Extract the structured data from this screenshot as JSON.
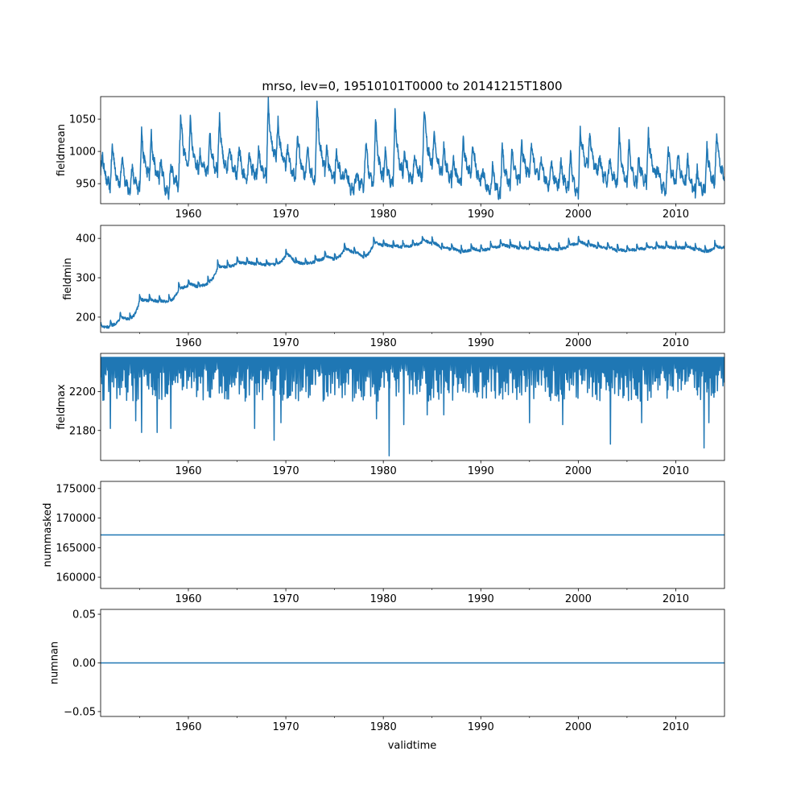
{
  "chart_data": [
    {
      "type": "line",
      "title": "mrso, lev=0, 19510101T0000 to 20141215T1800",
      "ylabel": "fieldmean",
      "xlabel": "",
      "xlim": [
        1951,
        2015
      ],
      "ylim": [
        919,
        1085
      ],
      "xticks": [
        "1960",
        "1970",
        "1980",
        "1990",
        "2000",
        "2010"
      ],
      "yticks": [
        {
          "v": 950,
          "label": "950"
        },
        {
          "v": 1000,
          "label": "1000"
        },
        {
          "v": 1050,
          "label": "1050"
        }
      ],
      "color": "#1f77b4",
      "years": [
        1951,
        1952,
        1953,
        1954,
        1955,
        1956,
        1957,
        1958,
        1959,
        1960,
        1961,
        1962,
        1963,
        1964,
        1965,
        1966,
        1967,
        1968,
        1969,
        1970,
        1971,
        1972,
        1973,
        1974,
        1975,
        1976,
        1977,
        1978,
        1979,
        1980,
        1981,
        1982,
        1983,
        1984,
        1985,
        1986,
        1987,
        1988,
        1989,
        1990,
        1991,
        1992,
        1993,
        1994,
        1995,
        1996,
        1997,
        1998,
        1999,
        2000,
        2001,
        2002,
        2003,
        2004,
        2005,
        2006,
        2007,
        2008,
        2009,
        2010,
        2011,
        2012,
        2013,
        2014
      ],
      "annual_peak": [
        995,
        1015,
        995,
        975,
        1030,
        1025,
        990,
        985,
        1057,
        1050,
        995,
        1030,
        1053,
        1010,
        1010,
        998,
        1005,
        1075,
        1047,
        1008,
        1030,
        1010,
        1078,
        1005,
        1000,
        970,
        965,
        1018,
        1050,
        1000,
        1060,
        1005,
        995,
        1072,
        1030,
        1005,
        985,
        1020,
        1015,
        975,
        980,
        1010,
        1005,
        1015,
        1015,
        990,
        985,
        985,
        1000,
        1035,
        1030,
        995,
        990,
        1030,
        1015,
        990,
        1030,
        975,
        1010,
        995,
        990,
        970,
        1010,
        1035
      ],
      "annual_trough": [
        942,
        945,
        935,
        940,
        960,
        955,
        930,
        945,
        975,
        970,
        965,
        965,
        965,
        960,
        950,
        960,
        960,
        985,
        975,
        955,
        960,
        950,
        970,
        955,
        955,
        935,
        945,
        945,
        955,
        945,
        960,
        950,
        960,
        975,
        965,
        955,
        950,
        960,
        950,
        935,
        930,
        945,
        950,
        960,
        955,
        945,
        945,
        940,
        928,
        975,
        965,
        950,
        950,
        945,
        945,
        950,
        960,
        935,
        950,
        950,
        935,
        935,
        945,
        955
      ]
    },
    {
      "type": "line",
      "ylabel": "fieldmin",
      "xlim": [
        1951,
        2015
      ],
      "ylim": [
        161,
        433
      ],
      "xticks": [
        "1960",
        "1970",
        "1980",
        "1990",
        "2000",
        "2010"
      ],
      "yticks": [
        {
          "v": 200,
          "label": "200"
        },
        {
          "v": 300,
          "label": "300"
        },
        {
          "v": 400,
          "label": "400"
        }
      ],
      "color": "#1f77b4",
      "years": [
        1951,
        1952,
        1953,
        1954,
        1955,
        1956,
        1957,
        1958,
        1959,
        1960,
        1961,
        1962,
        1963,
        1964,
        1965,
        1966,
        1967,
        1968,
        1969,
        1970,
        1971,
        1972,
        1973,
        1974,
        1975,
        1976,
        1977,
        1978,
        1979,
        1980,
        1981,
        1982,
        1983,
        1984,
        1985,
        1986,
        1987,
        1988,
        1989,
        1990,
        1991,
        1992,
        1993,
        1994,
        1995,
        1996,
        1997,
        1998,
        1999,
        2000,
        2001,
        2002,
        2003,
        2004,
        2005,
        2006,
        2007,
        2008,
        2009,
        2010,
        2011,
        2012,
        2013,
        2014
      ],
      "annual_level": [
        175,
        180,
        200,
        198,
        245,
        245,
        242,
        242,
        275,
        285,
        280,
        290,
        330,
        330,
        340,
        340,
        338,
        335,
        338,
        360,
        340,
        338,
        345,
        355,
        350,
        375,
        365,
        355,
        390,
        385,
        382,
        382,
        385,
        395,
        390,
        378,
        375,
        368,
        375,
        372,
        378,
        385,
        382,
        378,
        378,
        375,
        375,
        375,
        385,
        392,
        385,
        380,
        378,
        372,
        372,
        375,
        378,
        380,
        380,
        378,
        380,
        375,
        368,
        380
      ]
    },
    {
      "type": "line",
      "ylabel": "fieldmax",
      "xlim": [
        1951,
        2015
      ],
      "ylim": [
        2164.6,
        2219.6
      ],
      "xticks": [
        "1960",
        "1970",
        "1980",
        "1990",
        "2000",
        "2010"
      ],
      "yticks": [
        {
          "v": 2180,
          "label": "2180"
        },
        {
          "v": 2200,
          "label": "2200"
        }
      ],
      "color": "#1f77b4",
      "baseline": 2217,
      "typical_dip_range": [
        2195,
        2212
      ],
      "major_dips": [
        {
          "t": 1952.0,
          "v": 2181
        },
        {
          "t": 1954.6,
          "v": 2185
        },
        {
          "t": 1955.2,
          "v": 2179
        },
        {
          "t": 1956.8,
          "v": 2179
        },
        {
          "t": 1958.2,
          "v": 2181
        },
        {
          "t": 1966.8,
          "v": 2181
        },
        {
          "t": 1968.8,
          "v": 2175
        },
        {
          "t": 1969.5,
          "v": 2184
        },
        {
          "t": 1979.3,
          "v": 2186
        },
        {
          "t": 1980.6,
          "v": 2167
        },
        {
          "t": 1982.1,
          "v": 2183
        },
        {
          "t": 1984.5,
          "v": 2188
        },
        {
          "t": 1986.2,
          "v": 2188
        },
        {
          "t": 1995.0,
          "v": 2184
        },
        {
          "t": 1998.4,
          "v": 2183
        },
        {
          "t": 2003.3,
          "v": 2173
        },
        {
          "t": 2006.5,
          "v": 2184
        },
        {
          "t": 2012.9,
          "v": 2171
        },
        {
          "t": 2013.4,
          "v": 2184
        }
      ]
    },
    {
      "type": "line",
      "ylabel": "nummasked",
      "xlim": [
        1951,
        2015
      ],
      "ylim": [
        158100,
        176200
      ],
      "xticks": [
        "1960",
        "1970",
        "1980",
        "1990",
        "2000",
        "2010"
      ],
      "yticks": [
        {
          "v": 160000,
          "label": "160000"
        },
        {
          "v": 165000,
          "label": "165000"
        },
        {
          "v": 170000,
          "label": "170000"
        },
        {
          "v": 175000,
          "label": "175000"
        }
      ],
      "color": "#1f77b4",
      "constant_value": 167150
    },
    {
      "type": "line",
      "ylabel": "numnan",
      "xlabel": "validtime",
      "xlim": [
        1951,
        2015
      ],
      "ylim": [
        -0.055,
        0.055
      ],
      "xticks": [
        "1960",
        "1970",
        "1980",
        "1990",
        "2000",
        "2010"
      ],
      "yticks": [
        {
          "v": -0.05,
          "label": "−0.05"
        },
        {
          "v": 0,
          "label": "0.00"
        },
        {
          "v": 0.05,
          "label": "0.05"
        }
      ],
      "color": "#1f77b4",
      "constant_value": 0
    }
  ]
}
